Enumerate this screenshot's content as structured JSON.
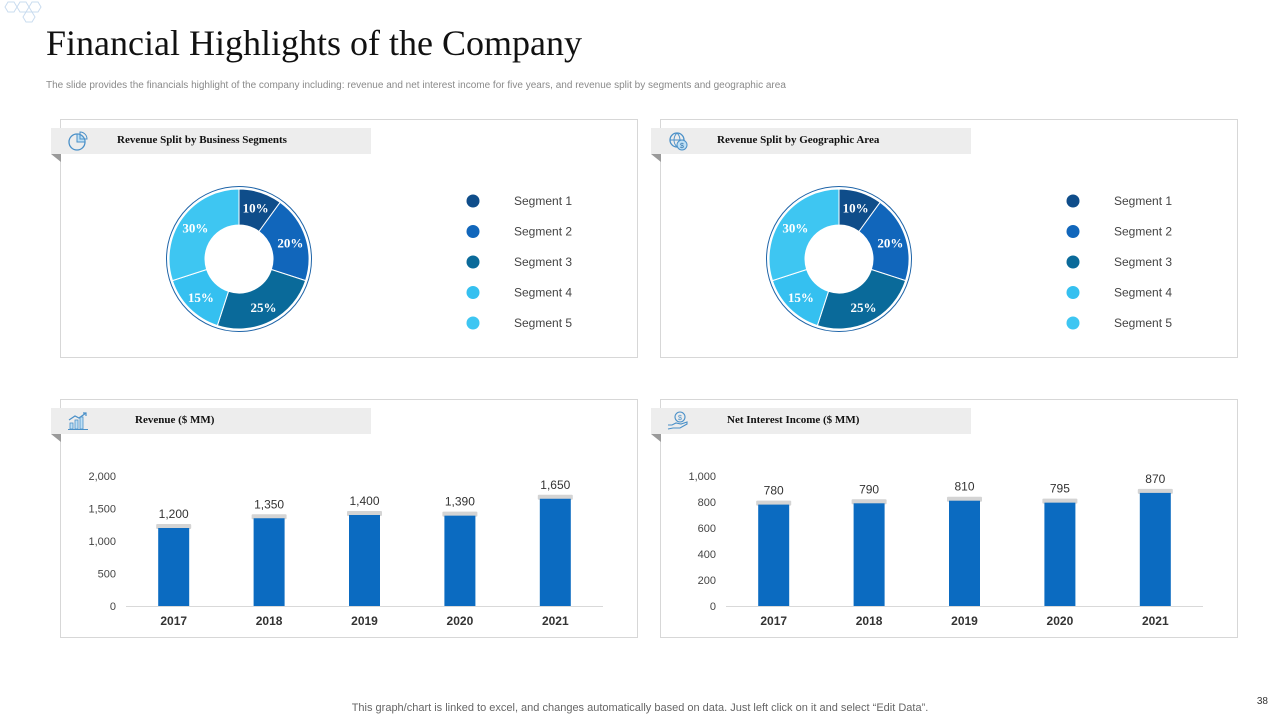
{
  "page": {
    "title": "Financial Highlights of the Company",
    "subtitle": "The slide provides the financials highlight of the company including: revenue and net interest income for five years, and revenue split by segments and geographic area",
    "footer": "This graph/chart is linked to excel,  and changes automatically based on data. Just left click on it and select “Edit Data”.",
    "page_number": "38"
  },
  "colors": {
    "seg1": "#0f4d8a",
    "seg2": "#1166bb",
    "seg3": "#0a6a9a",
    "seg4": "#35c0f0",
    "seg5": "#3ec6f2",
    "bar": "#0b6bc1",
    "panel_header": "#ededed"
  },
  "icons": {
    "panel1": "pie-chart-icon",
    "panel2": "globe-money-icon",
    "panel3": "bar-growth-icon",
    "panel4": "hand-money-icon"
  },
  "panels": [
    {
      "header": "Revenue Split by Business Segments"
    },
    {
      "header": "Revenue Split by Geographic Area"
    },
    {
      "header": "Revenue  ($ MM)"
    },
    {
      "header": "Net Interest Income ($ MM)"
    }
  ],
  "chart_data": [
    {
      "type": "pie",
      "title": "Revenue Split by Business Segments",
      "categories": [
        "Segment 1",
        "Segment 2",
        "Segment 3",
        "Segment 4",
        "Segment 5"
      ],
      "values": [
        10,
        20,
        25,
        15,
        30
      ],
      "data_labels": [
        "10%",
        "20%",
        "25%",
        "15%",
        "30%"
      ],
      "legend": [
        "Segment 1",
        "Segment 2",
        "Segment 3",
        "Segment 4",
        "Segment 5"
      ],
      "legend_position": "right"
    },
    {
      "type": "pie",
      "title": "Revenue Split by Geographic Area",
      "categories": [
        "Segment 1",
        "Segment 2",
        "Segment 3",
        "Segment 4",
        "Segment 5"
      ],
      "values": [
        10,
        20,
        25,
        15,
        30
      ],
      "data_labels": [
        "10%",
        "20%",
        "25%",
        "15%",
        "30%"
      ],
      "legend": [
        "Segment 1",
        "Segment 2",
        "Segment 3",
        "Segment 4",
        "Segment 5"
      ],
      "legend_position": "right"
    },
    {
      "type": "bar",
      "title": "Revenue  ($ MM)",
      "categories": [
        "2017",
        "2018",
        "2019",
        "2020",
        "2021"
      ],
      "values": [
        1200,
        1350,
        1400,
        1390,
        1650
      ],
      "data_labels": [
        "1,200",
        "1,350",
        "1,400",
        "1,390",
        "1,650"
      ],
      "yticks": [
        0,
        500,
        1000,
        1500,
        2000
      ],
      "ytick_labels": [
        "0",
        "500",
        "1,000",
        "1,500",
        "2,000"
      ],
      "ylim": [
        0,
        2000
      ]
    },
    {
      "type": "bar",
      "title": "Net Interest Income ($ MM)",
      "categories": [
        "2017",
        "2018",
        "2019",
        "2020",
        "2021"
      ],
      "values": [
        780,
        790,
        810,
        795,
        870
      ],
      "data_labels": [
        "780",
        "790",
        "810",
        "795",
        "870"
      ],
      "yticks": [
        0,
        200,
        400,
        600,
        800,
        1000
      ],
      "ytick_labels": [
        "0",
        "200",
        "400",
        "600",
        "800",
        "1,000"
      ],
      "ylim": [
        0,
        1000
      ]
    }
  ]
}
